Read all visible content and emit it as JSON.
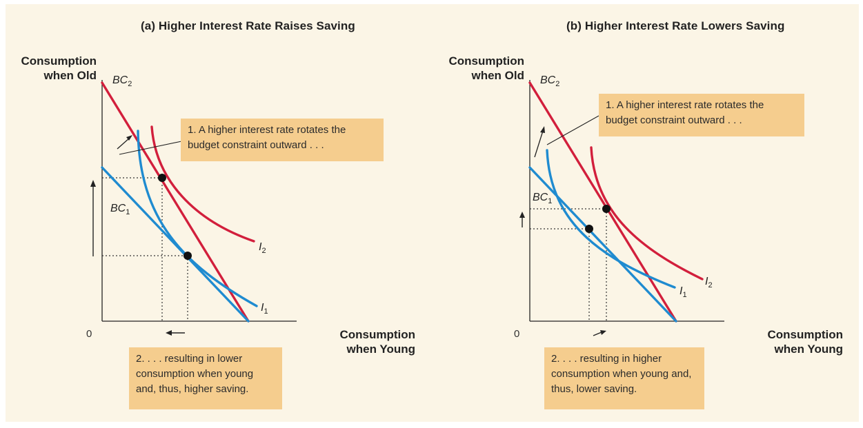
{
  "panel_a": {
    "title": "(a) Higher Interest Rate Raises Saving",
    "y_axis_label": [
      "Consumption",
      "when Old"
    ],
    "x_axis_label": [
      "Consumption",
      "when Young"
    ],
    "origin": "0",
    "bc2": {
      "base": "BC",
      "sub": "2"
    },
    "bc1": {
      "base": "BC",
      "sub": "1"
    },
    "i2": {
      "base": "I",
      "sub": "2"
    },
    "i1": {
      "base": "I",
      "sub": "1"
    },
    "note1": "1. A higher interest rate rotates the budget constraint outward . . .",
    "note2": "2. . . . resulting in lower consumption when young and, thus, higher saving."
  },
  "panel_b": {
    "title": "(b) Higher Interest Rate Lowers Saving",
    "y_axis_label": [
      "Consumption",
      "when Old"
    ],
    "x_axis_label": [
      "Consumption",
      "when Young"
    ],
    "origin": "0",
    "bc2": {
      "base": "BC",
      "sub": "2"
    },
    "bc1": {
      "base": "BC",
      "sub": "1"
    },
    "i2": {
      "base": "I",
      "sub": "2"
    },
    "i1": {
      "base": "I",
      "sub": "1"
    },
    "note1": "1. A higher interest rate rotates the budget constraint outward . . .",
    "note2": "2. . . . resulting in higher consumption when young and, thus, lower saving."
  },
  "colors": {
    "background": "#fbf5e6",
    "note": "#f5cd8e",
    "red_curve": "#d21f3c",
    "blue_curve": "#1f8bd0",
    "axis": "#222222"
  }
}
